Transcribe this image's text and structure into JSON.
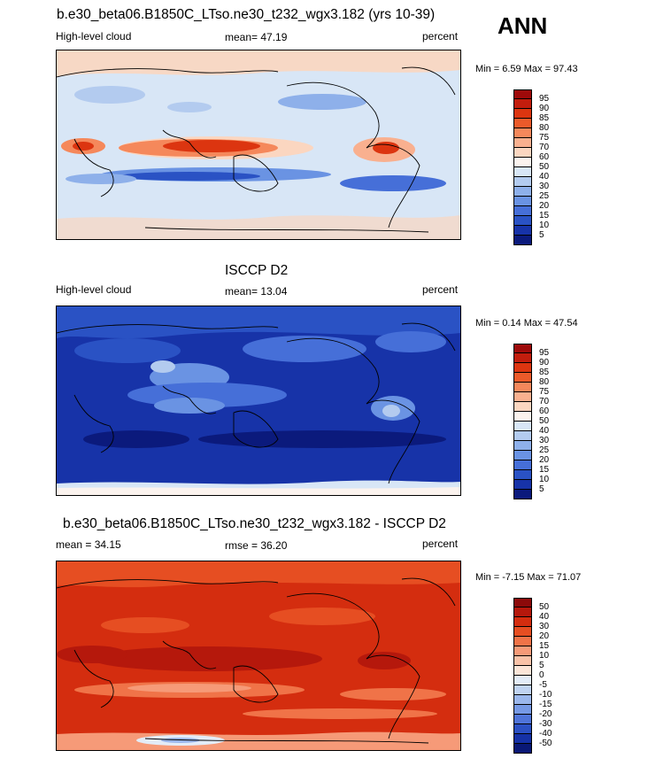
{
  "season": "ANN",
  "panels": [
    {
      "id": "model",
      "title": "b.e30_beta06.B1850C_LTso.ne30_t232_wgx3.182 (yrs 10-39)",
      "left_label": "High-level cloud",
      "center_label": "mean=  47.19",
      "units": "percent",
      "minmax": "Min =   6.59 Max =  97.43"
    },
    {
      "id": "obs",
      "title": "ISCCP D2",
      "left_label": "High-level cloud",
      "center_label": "mean=  13.04",
      "units": "percent",
      "minmax": "Min =   0.14 Max =  47.54"
    },
    {
      "id": "diff",
      "title": "b.e30_beta06.B1850C_LTso.ne30_t232_wgx3.182 - ISCCP D2",
      "left_label": "mean =  34.15",
      "center_label": "rmse =  36.20",
      "units": "percent",
      "minmax": "Min =  -7.15 Max =  71.07"
    }
  ],
  "colorbars": {
    "absolute": {
      "levels": [
        "95",
        "90",
        "85",
        "80",
        "75",
        "70",
        "60",
        "50",
        "40",
        "30",
        "25",
        "20",
        "15",
        "10",
        "5"
      ],
      "colors": [
        "#9e0a0a",
        "#c21d0d",
        "#dc3510",
        "#eb5a2a",
        "#f5885b",
        "#f9b08f",
        "#fbd6c0",
        "#fbf3ee",
        "#d8e6f6",
        "#b3cbef",
        "#8eb0ea",
        "#6a93e3",
        "#466fd8",
        "#2a52c4",
        "#1733a8",
        "#0b1a7c"
      ]
    },
    "difference": {
      "levels": [
        "50",
        "40",
        "30",
        "20",
        "15",
        "10",
        "5",
        "0",
        "-5",
        "-10",
        "-15",
        "-20",
        "-30",
        "-40",
        "-50"
      ],
      "colors": [
        "#8c0a0a",
        "#b5180c",
        "#d42d0f",
        "#e64e22",
        "#f07348",
        "#f69a78",
        "#f9c2a8",
        "#fbe5d8",
        "#e3ecf8",
        "#c0d3f1",
        "#9bb7ec",
        "#7699e5",
        "#4f74d9",
        "#2b50c3",
        "#1531a6",
        "#091876"
      ]
    }
  }
}
